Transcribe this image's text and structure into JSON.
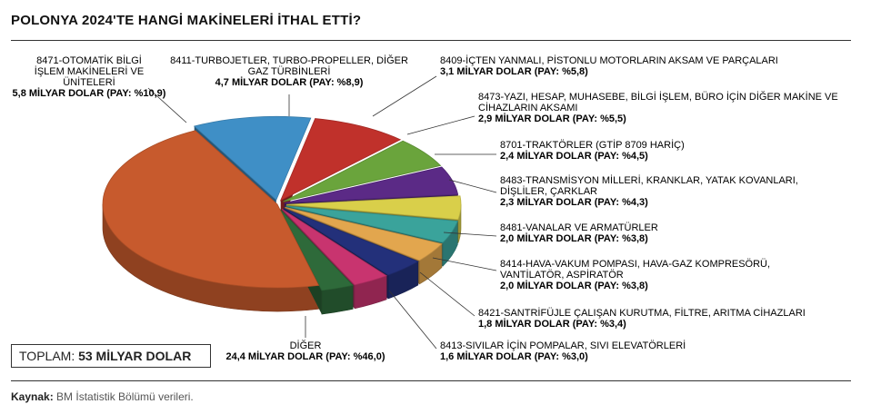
{
  "title": "POLONYA 2024'TE HANGİ MAKİNELERİ İTHAL ETTİ?",
  "total": {
    "label": "TOPLAM:",
    "value": "53 MİLYAR DOLAR"
  },
  "source": {
    "label": "Kaynak:",
    "text": "BM İstatistik Bölümü verileri."
  },
  "chart_data": {
    "type": "pie",
    "title": "POLONYA 2024'TE HANGİ MAKİNELERİ İTHAL ETTİ?",
    "unit": "MİLYAR DOLAR",
    "slices": [
      {
        "name": "8471-OTOMATİK BİLGİ İŞLEM MAKİNELERİ VE ÜNİTELERİ",
        "value": 5.8,
        "share": 10.9,
        "value_text": "5,8 MİLYAR DOLAR",
        "share_text": "(PAY: %10,9)",
        "color": "#3f8fc6"
      },
      {
        "name": "8411-TURBOJETLER, TURBO-PROPELLER, DİĞER GAZ TÜRBİNLERİ",
        "value": 4.7,
        "share": 8.9,
        "value_text": "4,7 MİLYAR DOLAR",
        "share_text": "(PAY: %8,9)",
        "color": "#c0312b"
      },
      {
        "name": "8409-İÇTEN YANMALI, PİSTONLU MOTORLARIN AKSAM VE PARÇALARI",
        "value": 3.1,
        "share": 5.8,
        "value_text": "3,1 MİLYAR DOLAR",
        "share_text": "(PAY: %5,8)",
        "color": "#6aa43c"
      },
      {
        "name": "8473-YAZI, HESAP, MUHASEBE, BİLGİ İŞLEM, BÜRO İÇİN DİĞER MAKİNE VE CİHAZLARIN AKSAMI",
        "value": 2.9,
        "share": 5.5,
        "value_text": "2,9 MİLYAR DOLAR",
        "share_text": "(PAY: %5,5)",
        "color": "#5b2a86"
      },
      {
        "name": "8701-TRAKTÖRLER (GTİP 8709 HARİÇ)",
        "value": 2.4,
        "share": 4.5,
        "value_text": "2,4 MİLYAR DOLAR",
        "share_text": "(PAY: %4,5)",
        "color": "#d9cf4a"
      },
      {
        "name": "8483-TRANSMİSYON MİLLERİ, KRANKLAR, YATAK KOVANLARI, DİŞLİLER, ÇARKLAR",
        "value": 2.3,
        "share": 4.3,
        "value_text": "2,3 MİLYAR DOLAR",
        "share_text": "(PAY: %4,3)",
        "color": "#3aa39b"
      },
      {
        "name": "8481-VANALAR VE ARMATÜRLER",
        "value": 2.0,
        "share": 3.8,
        "value_text": "2,0 MİLYAR DOLAR",
        "share_text": "(PAY: %3,8)",
        "color": "#e2a64e"
      },
      {
        "name": "8414-HAVA-VAKUM POMPASI, HAVA-GAZ KOMPRESÖRÜ, VANTİLATÖR, ASPİRATÖR",
        "value": 2.0,
        "share": 3.8,
        "value_text": "2,0 MİLYAR DOLAR",
        "share_text": "(PAY: %3,8)",
        "color": "#23307a"
      },
      {
        "name": "8421-SANTRİFÜJLE ÇALIŞAN KURUTMA, FİLTRE, ARITMA CİHAZLARI",
        "value": 1.8,
        "share": 3.4,
        "value_text": "1,8 MİLYAR DOLAR",
        "share_text": "(PAY: %3,4)",
        "color": "#c8346f"
      },
      {
        "name": "8413-SIVILAR İÇİN POMPALAR, SIVI ELEVATÖRLERİ",
        "value": 1.6,
        "share": 3.0,
        "value_text": "1,6 MİLYAR DOLAR",
        "share_text": "(PAY: %3,0)",
        "color": "#2e6a3a"
      },
      {
        "name": "DİĞER",
        "value": 24.4,
        "share": 46.0,
        "value_text": "24,4 MİLYAR DOLAR",
        "share_text": "(PAY: %46,0)",
        "color": "#c75a2d"
      }
    ]
  }
}
